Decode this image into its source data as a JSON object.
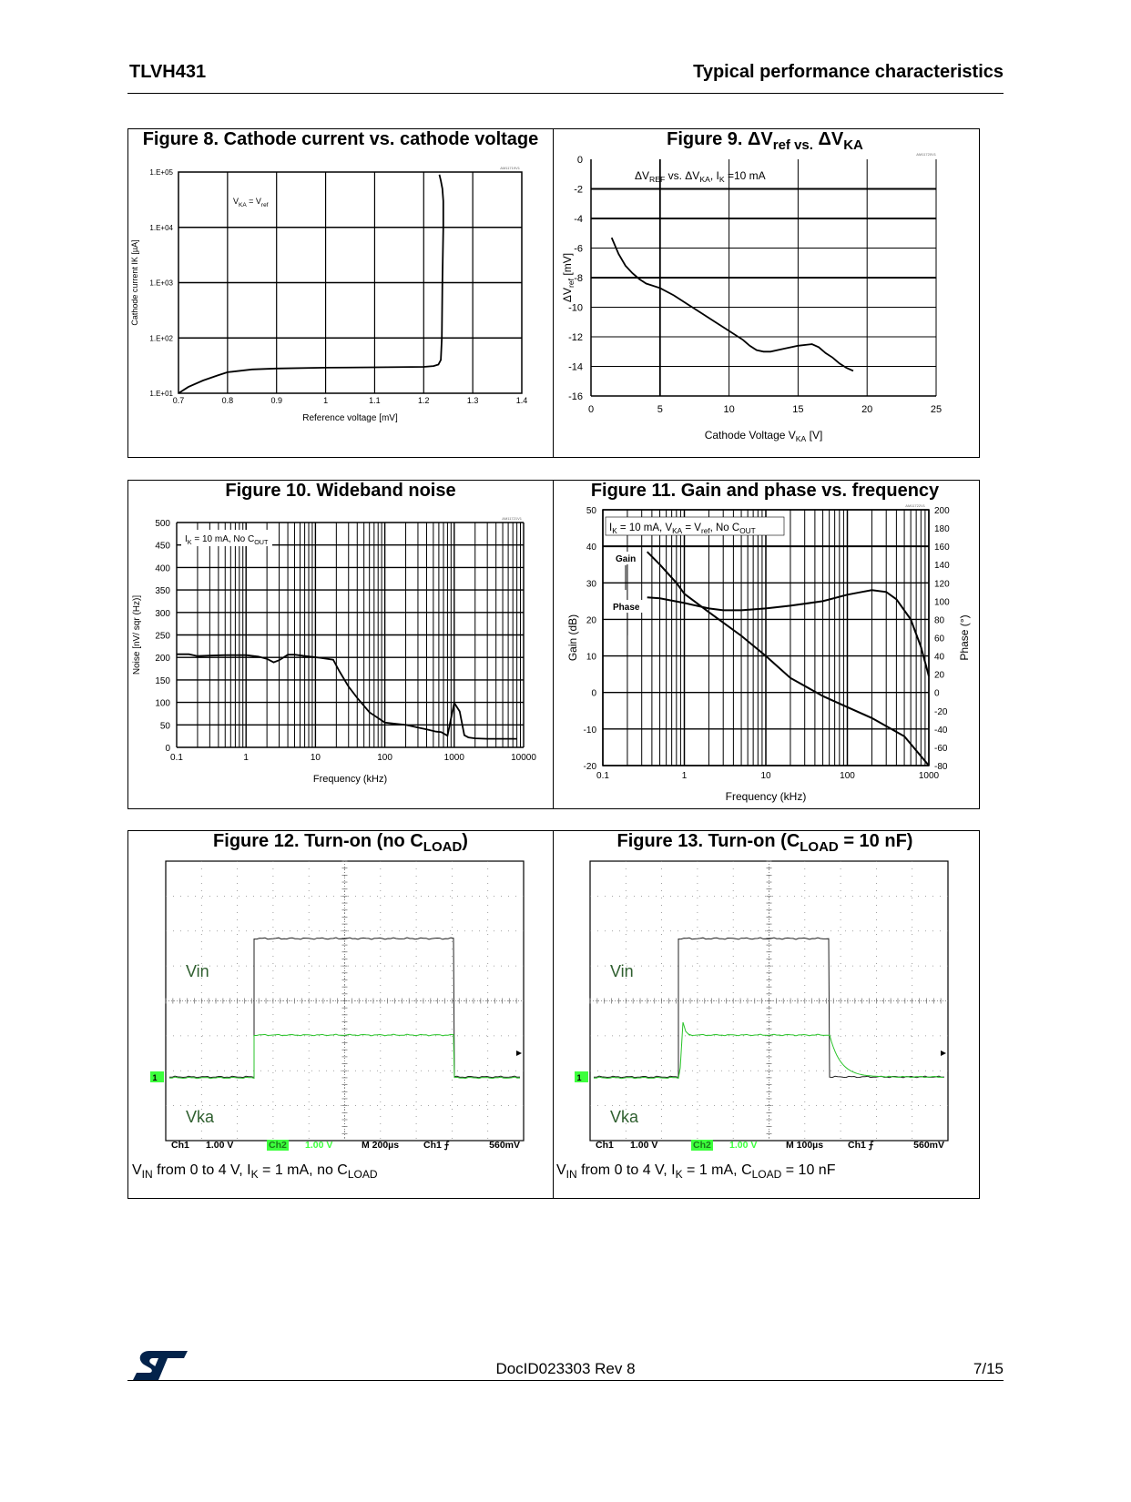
{
  "header": {
    "product": "TLVH431",
    "section": "Typical performance characteristics"
  },
  "footer": {
    "doc_id": "DocID023303 Rev 8",
    "page": "7/15",
    "logo": "st-logo"
  },
  "fig8": {
    "title": "Figure 8. Cathode current vs. cathode voltage",
    "code": "AM11719V1",
    "annotation": "VKA = Vref",
    "chart_data": {
      "type": "line",
      "xscale": "linear",
      "yscale": "log",
      "xlabel": "Reference voltage [mV]",
      "ylabel": "Cathode current IK [µA]",
      "xlim": [
        0.7,
        1.4
      ],
      "ylim": [
        10,
        100000
      ],
      "xticks": [
        "0.7",
        "0.8",
        "0.9",
        "1",
        "1.1",
        "1.2",
        "1.3",
        "1.4"
      ],
      "yticks": [
        "1.E+01",
        "1.E+02",
        "1.E+03",
        "1.E+04",
        "1.E+05"
      ],
      "x": [
        0.7,
        0.72,
        0.75,
        0.78,
        0.8,
        0.85,
        0.9,
        1.0,
        1.1,
        1.2,
        1.22,
        1.23,
        1.235,
        1.237,
        1.238,
        1.24,
        1.24,
        1.238,
        1.235,
        1.232
      ],
      "y": [
        10,
        13,
        17,
        21,
        24,
        27,
        28,
        29,
        29.5,
        30,
        31,
        33,
        40,
        100,
        1000,
        10000,
        30000,
        50000,
        70000,
        90000
      ]
    }
  },
  "fig9": {
    "title_main": "Figure 9. ΔV",
    "title_sub1": "ref vs.",
    "title_mid": " ΔV",
    "title_sub2": "KA",
    "code": "AM11720V1",
    "annotation": {
      "a": "ΔV",
      "a_sub": "REF",
      "b": " vs. ΔV",
      "b_sub": "KA",
      "c": ",  I",
      "c_sub": "K",
      "d": " =10 mA"
    },
    "chart_data": {
      "type": "line",
      "xlabel": "Cathode Voltage V",
      "xlabel_sub": "KA",
      "xlabel_tail": " [V]",
      "ylabel": "ΔV",
      "ylabel_sub": "ref",
      "ylabel_tail": "  [mV]",
      "xlim": [
        0,
        25
      ],
      "ylim": [
        -16,
        0
      ],
      "xticks": [
        0,
        5,
        10,
        15,
        20,
        25
      ],
      "yticks": [
        0,
        -2,
        -4,
        -6,
        -8,
        -10,
        -12,
        -14,
        -16
      ],
      "x": [
        1.5,
        2,
        2.5,
        3,
        3.5,
        4,
        5,
        6,
        7,
        8,
        9,
        10,
        11,
        11.5,
        12,
        12.5,
        13,
        14,
        15,
        16,
        16.5,
        17,
        17.5,
        18,
        18.5,
        19
      ],
      "y": [
        -5.3,
        -6.4,
        -7.2,
        -7.7,
        -8.1,
        -8.4,
        -8.7,
        -9.2,
        -9.8,
        -10.4,
        -11.0,
        -11.6,
        -12.2,
        -12.6,
        -12.9,
        -13.0,
        -13.0,
        -12.8,
        -12.6,
        -12.5,
        -12.7,
        -13.1,
        -13.4,
        -13.8,
        -14.1,
        -14.3
      ]
    }
  },
  "fig10": {
    "title": "Figure 10. Wideband noise",
    "code": "AM11721V1",
    "annotation": {
      "a": "I",
      "a_sub": "K",
      "b": " = 10 mA,   No  C",
      "b_sub": "OUT"
    },
    "chart_data": {
      "type": "line",
      "xscale": "log",
      "xlabel": "Frequency (kHz)",
      "ylabel": "Noise [nV/ sqr (Hz)]",
      "xlim": [
        0.1,
        10000
      ],
      "ylim": [
        0,
        500
      ],
      "xticks": [
        "0.1",
        "1",
        "10",
        "100",
        "1000",
        "10000"
      ],
      "yticks": [
        0,
        50,
        100,
        150,
        200,
        250,
        300,
        350,
        400,
        450,
        500
      ],
      "x": [
        0.1,
        0.15,
        0.2,
        0.3,
        0.5,
        1,
        1.5,
        2,
        2.5,
        3,
        4,
        5,
        8,
        12,
        18,
        22,
        30,
        40,
        60,
        100,
        150,
        200,
        300,
        400,
        550,
        650,
        800,
        1000,
        1200,
        1400,
        1600,
        2000,
        3000,
        5000,
        8000
      ],
      "y": [
        207,
        207,
        203,
        204,
        205,
        205,
        202,
        197,
        189,
        194,
        206,
        206,
        202,
        199,
        195,
        170,
        135,
        110,
        78,
        55,
        52,
        50,
        44,
        40,
        35,
        34,
        26,
        99,
        80,
        27,
        22,
        20,
        19,
        19,
        19
      ]
    }
  },
  "fig11": {
    "title": "Figure 11. Gain and phase vs. frequency",
    "code": "AM11722V1",
    "annotation": {
      "a": "I",
      "a_sub": "K",
      "b": " = 10 mA,  V",
      "b_sub": "KA",
      "c": " = V",
      "c_sub": "ref",
      "d": ",   No  C",
      "d_sub": "OUT"
    },
    "gain_label": "Gain",
    "phase_label": "Phase",
    "chart_data": {
      "type": "line",
      "xscale": "log",
      "xlabel": "Frequency   (kHz)",
      "ylabel": "Gain  (dB)",
      "y2label": "Phase  (°)",
      "xlim": [
        0.1,
        1000
      ],
      "ylim": [
        -20,
        50
      ],
      "y2lim": [
        -80,
        200
      ],
      "xticks": [
        "0.1",
        "1",
        "10",
        "100",
        "1000"
      ],
      "yticks": [
        -20,
        -10,
        0,
        10,
        20,
        30,
        40,
        50
      ],
      "y2ticks": [
        -80,
        -60,
        -40,
        -20,
        0,
        20,
        40,
        60,
        80,
        100,
        120,
        140,
        160,
        180,
        200
      ],
      "series": [
        {
          "name": "Gain",
          "axis": "left",
          "x": [
            0.35,
            0.5,
            0.8,
            1,
            2,
            5,
            10,
            20,
            50,
            100,
            200,
            500,
            1000
          ],
          "y": [
            38.5,
            35,
            30,
            27,
            22,
            15.5,
            10,
            4,
            -1,
            -4,
            -7,
            -12,
            -20
          ]
        },
        {
          "name": "Phase",
          "axis": "right",
          "x": [
            0.35,
            0.5,
            1,
            2,
            3,
            5,
            10,
            20,
            50,
            100,
            150,
            200,
            300,
            400,
            600,
            800,
            1000
          ],
          "y": [
            104,
            103,
            98,
            92,
            90,
            90,
            92,
            95,
            100,
            107,
            110,
            112,
            110,
            102,
            80,
            50,
            18
          ]
        }
      ]
    }
  },
  "fig12": {
    "title_main": "Figure 12. Turn-on (no C",
    "title_sub": "LOAD",
    "title_tail": ")",
    "vin_label": "Vin",
    "vka_label": "Vka",
    "scope": {
      "ch1": "Ch1",
      "ch1_scale": "1.00 V",
      "ch2": "Ch2",
      "ch2_scale": "1.00 V",
      "timebase": "M  200µs",
      "trigger": "Ch1  ⨍",
      "trig_level": "560mV",
      "marker": "1"
    },
    "caption": {
      "a": "V",
      "a_sub": "IN",
      "b": " from 0 to 4 V, I",
      "b_sub": "K",
      "c": " = 1 mA, no C",
      "c_sub": "LOAD",
      "d": ""
    }
  },
  "fig13": {
    "title_main": "Figure 13. Turn-on (C",
    "title_sub": "LOAD",
    "title_tail": " = 10 nF)",
    "vin_label": "Vin",
    "vka_label": "Vka",
    "scope": {
      "ch1": "Ch1",
      "ch1_scale": "1.00 V",
      "ch2": "Ch2",
      "ch2_scale": "1.00 V",
      "timebase": "M  100µs",
      "trigger": "Ch1  ⨍",
      "trig_level": "560mV",
      "marker": "1"
    },
    "caption": {
      "a": "V",
      "a_sub": "IN",
      "b": " from 0 to 4 V, I",
      "b_sub": "K",
      "c": " = 1 mA, C",
      "c_sub": "LOAD",
      "d": " = 10 nF"
    }
  }
}
